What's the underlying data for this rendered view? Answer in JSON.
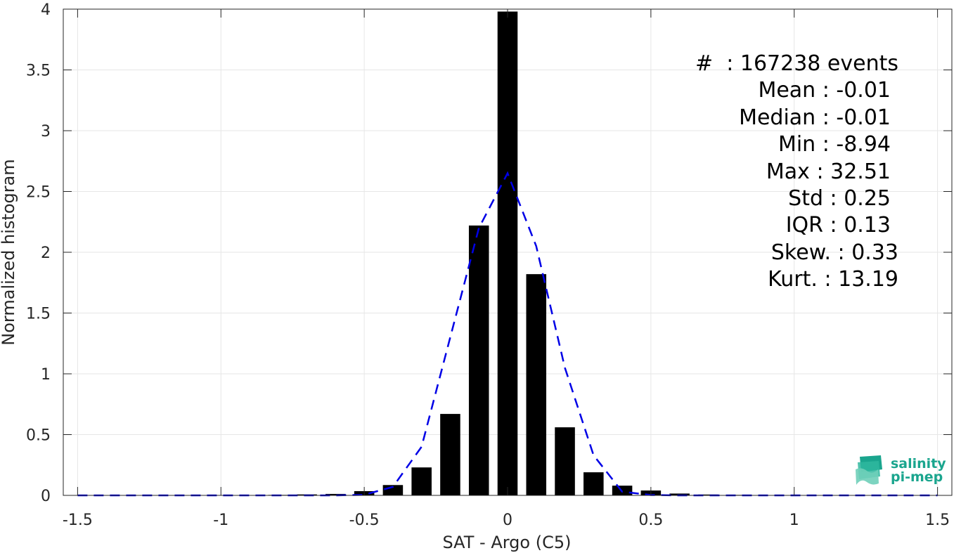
{
  "chart_data": {
    "type": "bar",
    "xlabel": "SAT - Argo (C5)",
    "ylabel": "Normalized histogram",
    "xlim": [
      -1.55,
      1.55
    ],
    "ylim": [
      0,
      4
    ],
    "xticks": [
      -1.5,
      -1,
      -0.5,
      0,
      0.5,
      1,
      1.5
    ],
    "xtick_labels": [
      "-1.5",
      "-1",
      "-0.5",
      "0",
      "0.5",
      "1",
      "1.5"
    ],
    "yticks": [
      0,
      0.5,
      1,
      1.5,
      2,
      2.5,
      3,
      3.5,
      4
    ],
    "ytick_labels": [
      "0",
      "0.5",
      "1",
      "1.5",
      "2",
      "2.5",
      "3",
      "3.5",
      "4"
    ],
    "grid": true,
    "bar_color": "#000000",
    "bar_width": 0.07,
    "series": [
      {
        "kind": "bar",
        "x": [
          -1.5,
          -1.4,
          -1.3,
          -1.2,
          -1.1,
          -1.0,
          -0.9,
          -0.8,
          -0.7,
          -0.6,
          -0.5,
          -0.4,
          -0.3,
          -0.2,
          -0.1,
          0.0,
          0.1,
          0.2,
          0.3,
          0.4,
          0.5,
          0.6,
          0.7,
          0.8,
          0.9,
          1.0,
          1.1,
          1.2,
          1.3,
          1.4,
          1.5
        ],
        "values": [
          0.002,
          0.002,
          0.002,
          0.002,
          0.002,
          0.002,
          0.002,
          0.004,
          0.008,
          0.012,
          0.035,
          0.085,
          0.23,
          0.67,
          2.22,
          3.98,
          1.82,
          0.56,
          0.19,
          0.08,
          0.04,
          0.015,
          0.007,
          0.004,
          0.002,
          0.002,
          0.002,
          0.002,
          0.002,
          0.002,
          0.002
        ]
      },
      {
        "kind": "line",
        "style": "dashed",
        "color": "#0000e6",
        "x": [
          -1.5,
          -1.4,
          -1.3,
          -1.2,
          -1.1,
          -1.0,
          -0.9,
          -0.8,
          -0.7,
          -0.6,
          -0.5,
          -0.4,
          -0.3,
          -0.2,
          -0.1,
          0.0,
          0.1,
          0.2,
          0.3,
          0.4,
          0.5,
          0.6,
          0.7,
          0.8,
          0.9,
          1.0,
          1.1,
          1.2,
          1.3,
          1.4,
          1.5
        ],
        "values": [
          0,
          0,
          0,
          0,
          0,
          0,
          0,
          0,
          0,
          0,
          0.005,
          0.07,
          0.4,
          1.3,
          2.2,
          2.65,
          2.05,
          1.05,
          0.33,
          0.03,
          0.003,
          0,
          0,
          0,
          0,
          0,
          0,
          0,
          0,
          0,
          0
        ]
      }
    ]
  },
  "stats": {
    "events": "#  : 167238 events",
    "mean": "Mean : -0.01",
    "median": "Median : -0.01",
    "min": "Min : -8.94",
    "max": "Max : 32.51",
    "std": "Std : 0.25",
    "iqr": "IQR : 0.13",
    "skew": "Skew. : 0.33",
    "kurt": "Kurt. : 13.19"
  },
  "logo": {
    "line1": "salinity",
    "line2": "pi-mep",
    "color": "#1aa58e"
  }
}
